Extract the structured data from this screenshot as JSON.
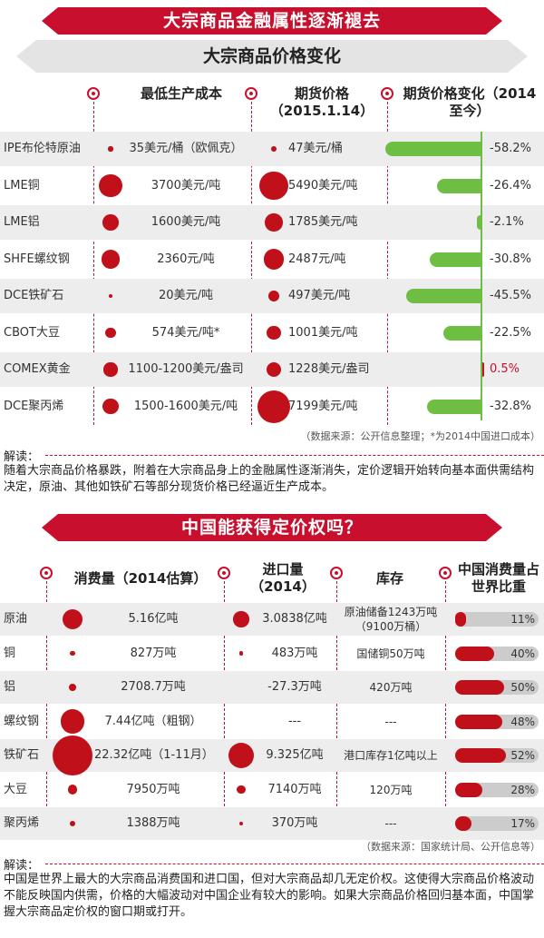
{
  "section1": {
    "title": "大宗商品金融属性逐渐褪去",
    "subtitle": "大宗商品价格变化",
    "headers": {
      "cost": "最低生产成本",
      "futures": "期货价格（2015.1.14）",
      "change": "期货价格变化（2014至今）"
    },
    "rows": [
      {
        "name": "IPE布伦特原油",
        "cost": "35美元/桶（欧佩克）",
        "futures": "47美元/桶",
        "change": "-58.2%",
        "change_value": -58.2
      },
      {
        "name": "LME铜",
        "cost": "3700美元/吨",
        "futures": "5490美元/吨",
        "change": "-26.4%",
        "change_value": -26.4
      },
      {
        "name": "LME铝",
        "cost": "1600美元/吨",
        "futures": "1785美元/吨",
        "change": "-2.1%",
        "change_value": -2.1
      },
      {
        "name": "SHFE螺纹钢",
        "cost": "2360元/吨",
        "futures": "2487元/吨",
        "change": "-30.8%",
        "change_value": -30.8
      },
      {
        "name": "DCE铁矿石",
        "cost": "20美元/吨",
        "futures": "497美元/吨",
        "change": "-45.5%",
        "change_value": -45.5
      },
      {
        "name": "CBOT大豆",
        "cost": "574美元/吨*",
        "futures": "1001美元/吨",
        "change": "-22.5%",
        "change_value": -22.5
      },
      {
        "name": "COMEX黄金",
        "cost": "1100-1200美元/盎司",
        "futures": "1228美元/盎司",
        "change": "0.5%",
        "change_value": 0.5
      },
      {
        "name": "DCE聚丙烯",
        "cost": "1500-1600美元/吨",
        "futures": "7199美元/吨",
        "change": "-32.8%",
        "change_value": -32.8
      }
    ],
    "source": "（数据来源：公开信息整理；*为2014中国进口成本）",
    "jiedu_label": "解读：",
    "commentary": "随着大宗商品价格暴跌，附着在大宗商品身上的金融属性逐渐消失，定价逻辑开始转向基本面供需结构决定，原油、其他如铁矿石等部分现货价格已经逼近生产成本。"
  },
  "section2": {
    "title": "中国能获得定价权吗？",
    "headers": {
      "consumption": "消费量（2014估算）",
      "imports": "进口量（2014）",
      "inventory": "库存",
      "share": "中国消费量占世界比重"
    },
    "rows": [
      {
        "name": "原油",
        "consumption": "5.16亿吨",
        "imports": "3.0838亿吨",
        "inventory": "原油储备1243万吨（9100万桶）",
        "share": "11%",
        "share_value": 11
      },
      {
        "name": "铜",
        "consumption": "827万吨",
        "imports": "483万吨",
        "inventory": "国储铜50万吨",
        "share": "40%",
        "share_value": 40
      },
      {
        "name": "铝",
        "consumption": "2708.7万吨",
        "imports": "-27.3万吨",
        "inventory": "420万吨",
        "share": "50%",
        "share_value": 50
      },
      {
        "name": "螺纹钢",
        "consumption": "7.44亿吨（粗钢）",
        "imports": "---",
        "inventory": "---",
        "share": "48%",
        "share_value": 48
      },
      {
        "name": "铁矿石",
        "consumption": "22.32亿吨（1-11月）",
        "imports": "9.325亿吨",
        "inventory": "港口库存1亿吨以上",
        "share": "52%",
        "share_value": 52
      },
      {
        "name": "大豆",
        "consumption": "7950万吨",
        "imports": "7140万吨",
        "inventory": "120万吨",
        "share": "28%",
        "share_value": 28
      },
      {
        "name": "聚丙烯",
        "consumption": "1388万吨",
        "imports": "370万吨",
        "inventory": "---",
        "share": "17%",
        "share_value": 17
      }
    ],
    "source": "（数据来源：国家统计局、公开信息等）",
    "jiedu_label": "解读：",
    "commentary": "中国是世界上最大的大宗商品消费国和进口国，但对大宗商品却几无定价权。这使得大宗商品价格波动不能反映国内供需，价格的大幅波动对中国企业有较大的影响。如果大宗商品价格回归基本面，中国掌握大宗商品定价权的窗口期或打开。"
  },
  "colors": {
    "accent": "#c8102e",
    "dot": "#c0101a",
    "bar_green": "#6fbe44",
    "row_shade": "#ededed",
    "banner_text": "#ffffff"
  },
  "chart_data": [
    {
      "type": "bar",
      "categories": [
        "IPE布伦特原油",
        "LME铜",
        "LME铝",
        "SHFE螺纹钢",
        "DCE铁矿石",
        "CBOT大豆",
        "COMEX黄金",
        "DCE聚丙烯"
      ],
      "values": [
        -58.2,
        -26.4,
        -2.1,
        -30.8,
        -45.5,
        -22.5,
        0.5,
        -32.8
      ],
      "title": "期货价格变化（2014至今）"
    },
    {
      "type": "bar",
      "categories": [
        "原油",
        "铜",
        "铝",
        "螺纹钢",
        "铁矿石",
        "大豆",
        "聚丙烯"
      ],
      "values": [
        11,
        40,
        50,
        48,
        52,
        28,
        17
      ],
      "title": "中国消费量占世界比重"
    }
  ]
}
